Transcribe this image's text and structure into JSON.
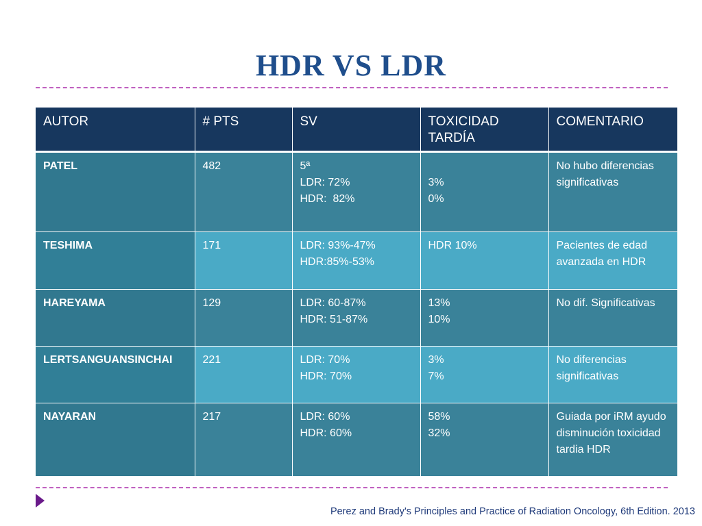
{
  "title": "HDR VS LDR",
  "table": {
    "headers": [
      "AUTOR",
      "# PTS",
      "SV",
      "TOXICIDAD TARDÍA",
      "COMENTARIO"
    ],
    "rows": [
      {
        "autor": "PATEL",
        "pts": "482",
        "sv": [
          "5ª",
          "LDR: 72%",
          "HDR:  82%"
        ],
        "toxicidad": [
          "",
          "3%",
          "0%"
        ],
        "comentario": "No hubo diferencias significativas"
      },
      {
        "autor": "TESHIMA",
        "pts": "171",
        "sv": [
          "LDR: 93%-47%",
          "HDR:85%-53%"
        ],
        "toxicidad": [
          "HDR 10%"
        ],
        "comentario": "Pacientes de edad avanzada en HDR"
      },
      {
        "autor": "HAREYAMA",
        "pts": "129",
        "sv": [
          "LDR: 60-87%",
          "HDR: 51-87%"
        ],
        "toxicidad": [
          "13%",
          "10%"
        ],
        "comentario": "No dif. Significativas"
      },
      {
        "autor": "LERTSANGUANSINCHAI",
        "pts": "221",
        "sv": [
          "LDR: 70%",
          "HDR: 70%"
        ],
        "toxicidad": [
          "3%",
          "7%"
        ],
        "comentario": "No diferencias significativas"
      },
      {
        "autor": "NAYARAN",
        "pts": "217",
        "sv": [
          "LDR: 60%",
          "HDR: 60%"
        ],
        "toxicidad": [
          "58%",
          "32%"
        ],
        "comentario": "Guiada por iRM ayudo disminución toxicidad tardia HDR"
      }
    ]
  },
  "footer": {
    "citation": "Perez and Brady's Principles and Practice of Radiation Oncology, 6th Edition. 2013",
    "bullet_icon": "triangle-bullet-icon",
    "bullet_color": "#6a1a8a"
  },
  "colors": {
    "title": "#1f4e8c",
    "header_bg": "#17375e",
    "row_dark": "#3a8299",
    "row_light": "#4aaac6",
    "divider": "#c060c0"
  }
}
